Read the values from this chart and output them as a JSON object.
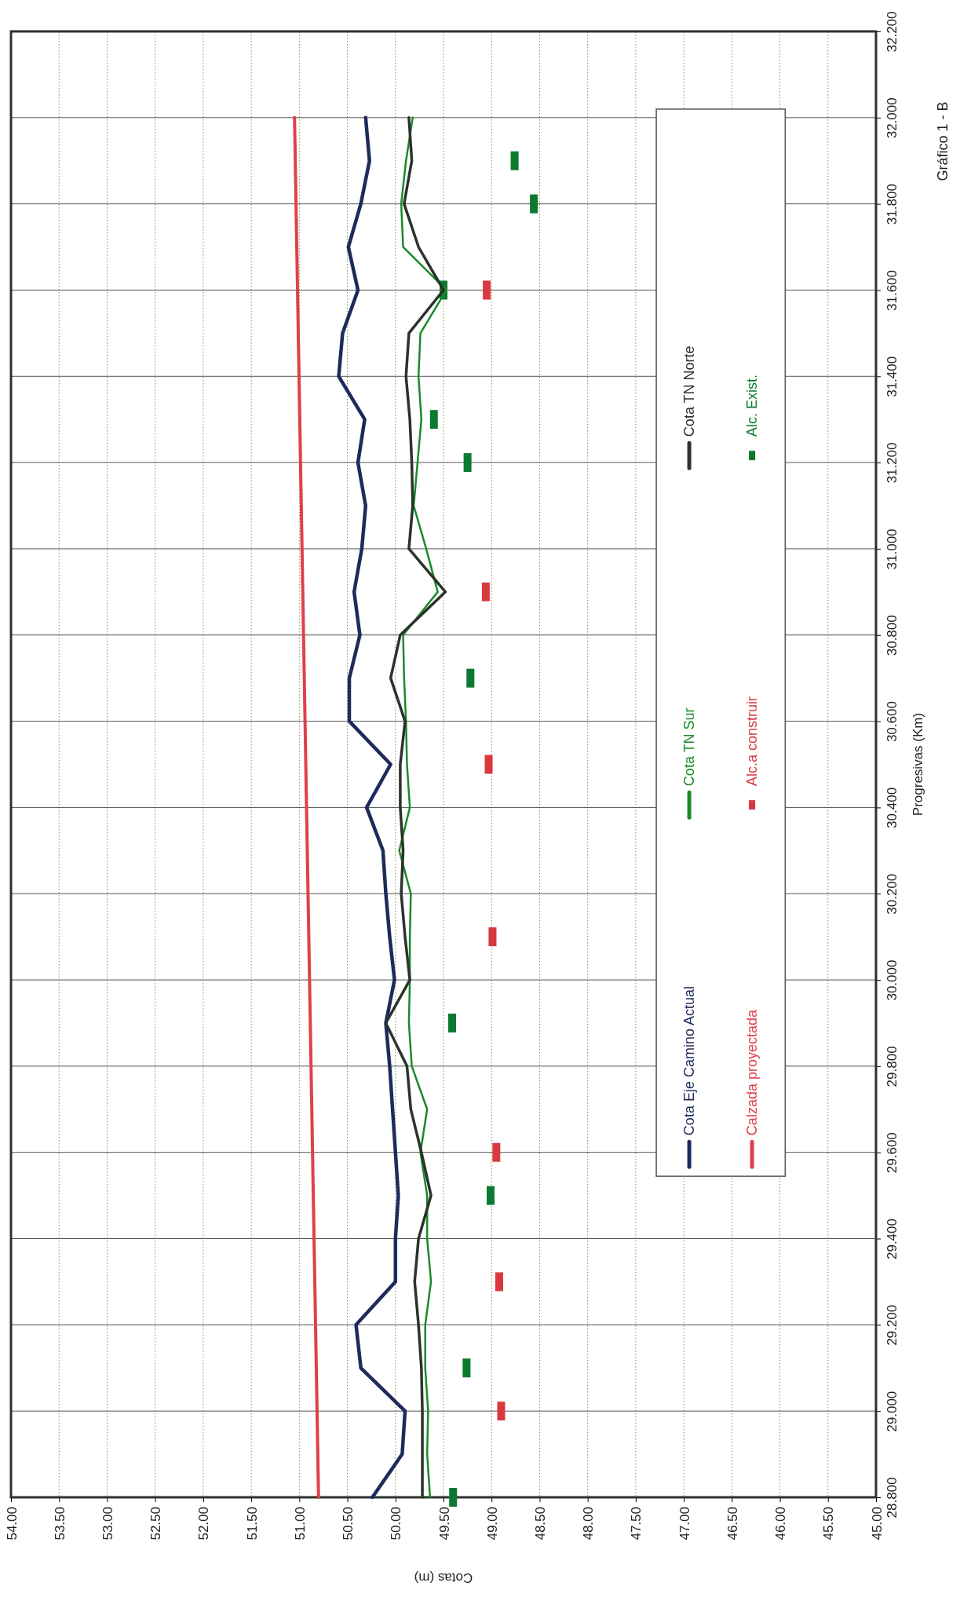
{
  "chart_data": {
    "type": "line",
    "xlabel": "Cotas (m)",
    "ylabel": "Progresivas (Km)",
    "annotations": [
      "Gráfico 1 - B"
    ],
    "series": [
      {
        "name": "Cota Eje Camino Actual",
        "color": "#1f2a5c",
        "x": [
          50.24,
          49.93,
          49.9,
          50.36,
          50.41,
          50.0,
          50.0,
          49.97,
          50.0,
          50.03,
          50.06,
          50.1,
          50.01,
          50.06,
          50.1,
          50.13,
          50.3,
          50.05,
          50.48,
          50.48,
          50.37,
          50.43,
          50.35,
          50.31,
          50.39,
          50.32,
          50.59,
          50.55,
          50.39,
          50.49,
          50.36,
          50.27,
          50.31
        ],
        "values": [
          28.8,
          28.9,
          29.0,
          29.1,
          29.2,
          29.3,
          29.4,
          29.5,
          29.6,
          29.7,
          29.8,
          29.9,
          30.0,
          30.1,
          30.2,
          30.3,
          30.4,
          30.5,
          30.6,
          30.7,
          30.8,
          30.9,
          31.0,
          31.1,
          31.2,
          31.3,
          31.4,
          31.5,
          31.6,
          31.7,
          31.8,
          31.9,
          32.0
        ]
      },
      {
        "name": "Cota TN Sur",
        "color": "#1a8a2a",
        "x": [
          49.64,
          49.67,
          49.66,
          49.69,
          49.69,
          49.63,
          49.67,
          49.67,
          49.74,
          49.67,
          49.83,
          49.86,
          49.85,
          49.85,
          49.84,
          49.96,
          49.85,
          49.88,
          49.89,
          49.91,
          49.92,
          49.56,
          49.68,
          49.81,
          49.77,
          49.73,
          49.76,
          49.74,
          49.47,
          49.92,
          49.94,
          49.89,
          49.82
        ],
        "values": [
          28.8,
          28.9,
          29.0,
          29.1,
          29.2,
          29.3,
          29.4,
          29.5,
          29.6,
          29.7,
          29.8,
          29.9,
          30.0,
          30.1,
          30.2,
          30.3,
          30.4,
          30.5,
          30.6,
          30.7,
          30.8,
          30.9,
          31.0,
          31.1,
          31.2,
          31.3,
          31.4,
          31.5,
          31.6,
          31.7,
          31.8,
          31.9,
          32.0
        ]
      },
      {
        "name": "Cota TN Norte",
        "color": "#2a332c",
        "x": [
          49.72,
          49.72,
          49.72,
          49.73,
          49.76,
          49.8,
          49.76,
          49.63,
          49.73,
          49.84,
          49.88,
          50.1,
          49.85,
          49.9,
          49.94,
          49.92,
          49.95,
          49.95,
          49.9,
          50.05,
          49.95,
          49.48,
          49.86,
          49.82,
          49.83,
          49.85,
          49.89,
          49.86,
          49.5,
          49.76,
          49.91,
          49.83,
          49.86
        ],
        "values": [
          28.8,
          28.9,
          29.0,
          29.1,
          29.2,
          29.3,
          29.4,
          29.5,
          29.6,
          29.7,
          29.8,
          29.9,
          30.0,
          30.1,
          30.2,
          30.3,
          30.4,
          30.5,
          30.6,
          30.7,
          30.8,
          30.9,
          31.0,
          31.1,
          31.2,
          31.3,
          31.4,
          31.5,
          31.6,
          31.7,
          31.8,
          31.9,
          32.0
        ]
      },
      {
        "name": "Calzada proyectada",
        "color": "#e0404a",
        "x": [
          50.8,
          51.05
        ],
        "values": [
          28.8,
          32.0
        ]
      },
      {
        "name": "Alc.a construir",
        "type": "scatter",
        "color": "#d9383f",
        "x": [
          48.9,
          48.92,
          48.95,
          48.99,
          49.03,
          49.06,
          49.05
        ],
        "values": [
          29.0,
          29.3,
          29.6,
          30.1,
          30.5,
          30.9,
          31.6
        ]
      },
      {
        "name": "Alc. Exist.",
        "type": "scatter",
        "color": "#0b7a30",
        "x": [
          49.4,
          49.26,
          49.01,
          49.41,
          49.22,
          49.25,
          49.6,
          49.5,
          48.56,
          48.76
        ],
        "values": [
          28.8,
          29.1,
          29.5,
          29.9,
          30.7,
          31.2,
          31.3,
          31.6,
          31.8,
          31.9
        ]
      }
    ],
    "ylim": [
      28.8,
      32.2
    ],
    "yticks": [
      {
        "value": 28.8,
        "label": "28.800"
      },
      {
        "value": 29.0,
        "label": "29.000"
      },
      {
        "value": 29.2,
        "label": "29.200"
      },
      {
        "value": 29.4,
        "label": "29.400"
      },
      {
        "value": 29.6,
        "label": "29.600"
      },
      {
        "value": 29.8,
        "label": "29.800"
      },
      {
        "value": 30.0,
        "label": "30.000"
      },
      {
        "value": 30.2,
        "label": "30.200"
      },
      {
        "value": 30.4,
        "label": "30.400"
      },
      {
        "value": 30.6,
        "label": "30.600"
      },
      {
        "value": 30.8,
        "label": "30.800"
      },
      {
        "value": 31.0,
        "label": "31.000"
      },
      {
        "value": 31.2,
        "label": "31.200"
      },
      {
        "value": 31.4,
        "label": "31.400"
      },
      {
        "value": 31.6,
        "label": "31.600"
      },
      {
        "value": 31.8,
        "label": "31.800"
      },
      {
        "value": 32.0,
        "label": "32.000"
      },
      {
        "value": 32.2,
        "label": "32.200"
      }
    ],
    "xlim": [
      54,
      45
    ],
    "xticks": [
      {
        "value": 54,
        "label": "54.00"
      },
      {
        "value": 53.5,
        "label": "53.50"
      },
      {
        "value": 53,
        "label": "53.00"
      },
      {
        "value": 52.5,
        "label": "52.50"
      },
      {
        "value": 52,
        "label": "52.00"
      },
      {
        "value": 51.5,
        "label": "51.50"
      },
      {
        "value": 51,
        "label": "51.00"
      },
      {
        "value": 50.5,
        "label": "50.50"
      },
      {
        "value": 50,
        "label": "50.00"
      },
      {
        "value": 49.5,
        "label": "49.50"
      },
      {
        "value": 49,
        "label": "49.00"
      },
      {
        "value": 48.5,
        "label": "48.50"
      },
      {
        "value": 48,
        "label": "48.00"
      },
      {
        "value": 47.5,
        "label": "47.50"
      },
      {
        "value": 47,
        "label": "47.00"
      },
      {
        "value": 46.5,
        "label": "46.50"
      },
      {
        "value": 46,
        "label": "46.00"
      },
      {
        "value": 45.5,
        "label": "45.50"
      },
      {
        "value": 45,
        "label": "45.00"
      }
    ],
    "grid": true,
    "legend": "right"
  }
}
